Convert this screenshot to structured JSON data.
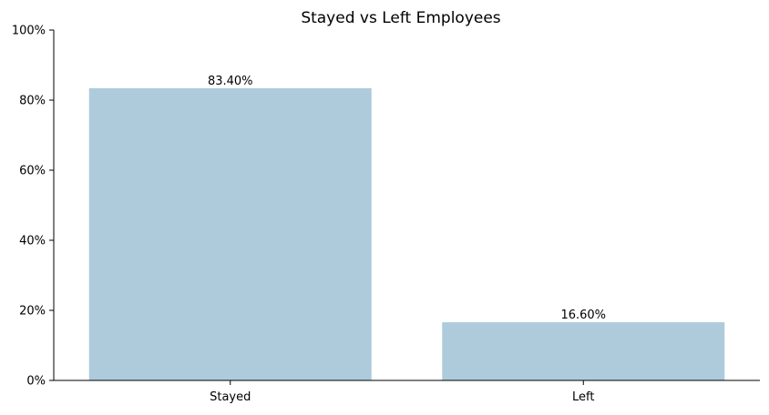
{
  "chart_data": {
    "type": "bar",
    "title": "Stayed vs Left Employees",
    "xlabel": "",
    "ylabel": "",
    "categories": [
      "Stayed",
      "Left"
    ],
    "values": [
      83.4,
      16.6
    ],
    "data_labels": [
      "83.40%",
      "16.60%"
    ],
    "ylim": [
      0,
      100
    ],
    "y_ticks": [
      0,
      20,
      40,
      60,
      80,
      100
    ],
    "y_tick_labels": [
      "0%",
      "20%",
      "40%",
      "60%",
      "80%",
      "100%"
    ],
    "bar_color": "#aecbdc",
    "axis_color": "#000000",
    "grid": false,
    "legend": false
  }
}
